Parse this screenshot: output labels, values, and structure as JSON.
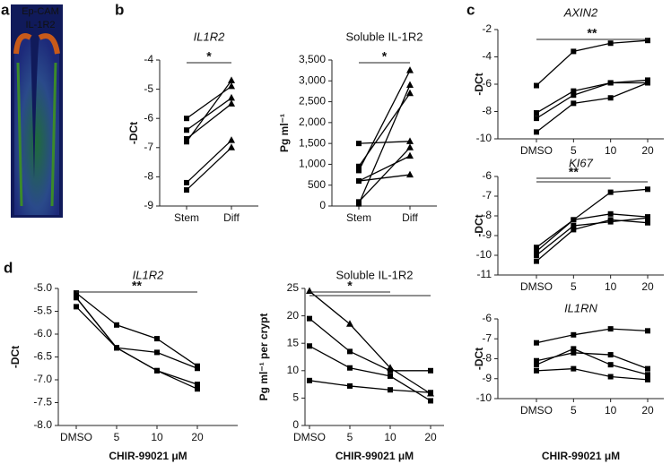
{
  "image_panel": {
    "panel": "a",
    "labels": [
      "Ep-CAM",
      "IL-1R2"
    ],
    "label_colors": [
      "#3ddc3d",
      "#ff2a2a"
    ]
  },
  "chart_data": [
    {
      "type": "line",
      "panel": "b",
      "title": "IL1R2",
      "title_italic": true,
      "ylabel": "-DCt",
      "color": "#000000",
      "categories": [
        "Stem",
        "Diff"
      ],
      "markers": [
        "square",
        "triangle"
      ],
      "ylim": [
        -9,
        -4
      ],
      "yticks": [
        -9,
        -8,
        -7,
        -6,
        -5,
        -4
      ],
      "series": [
        {
          "values": [
            -6.0,
            -4.9
          ]
        },
        {
          "values": [
            -6.4,
            -5.3
          ]
        },
        {
          "values": [
            -6.7,
            -5.5
          ]
        },
        {
          "values": [
            -6.8,
            -4.7
          ]
        },
        {
          "values": [
            -8.2,
            -6.75
          ]
        },
        {
          "values": [
            -8.45,
            -7.0
          ]
        }
      ],
      "annotations": [
        {
          "text": "*",
          "from": "Stem",
          "to": [
            "Diff"
          ]
        }
      ]
    },
    {
      "type": "line",
      "title": "Soluble IL-1R2",
      "title_italic": false,
      "ylabel": "Pg ml⁻¹",
      "color": "#000000",
      "categories": [
        "Stem",
        "Diff"
      ],
      "markers": [
        "square",
        "triangle"
      ],
      "ylim": [
        0,
        3500
      ],
      "yticks": [
        0,
        500,
        {
          "value": 1000,
          "label": "1,000"
        },
        {
          "value": 1500,
          "label": "1,500"
        },
        {
          "value": 2000,
          "label": "2,000"
        },
        {
          "value": 2500,
          "label": "2,500"
        },
        {
          "value": 3000,
          "label": "3,000"
        },
        {
          "value": 3500,
          "label": "3,500"
        }
      ],
      "series": [
        {
          "values": [
            1500,
            1550
          ]
        },
        {
          "values": [
            950,
            2700
          ]
        },
        {
          "values": [
            850,
            3250
          ]
        },
        {
          "values": [
            600,
            1200
          ]
        },
        {
          "values": [
            100,
            1400
          ]
        },
        {
          "values": [
            50,
            2900
          ]
        },
        {
          "values": [
            600,
            750
          ]
        }
      ],
      "annotations": [
        {
          "text": "*",
          "from": "Stem",
          "to": [
            "Diff"
          ]
        }
      ]
    },
    {
      "type": "line",
      "panel": "c",
      "title": "AXIN2",
      "title_italic": true,
      "ylabel": "-DCt",
      "color": "#000000",
      "categories": [
        "DMSO",
        "5",
        "10",
        "20"
      ],
      "ylim": [
        -10,
        -2
      ],
      "yticks": [
        -10,
        -8,
        -6,
        -4,
        -2
      ],
      "series": [
        {
          "marker": "square",
          "values": [
            -6.1,
            -3.6,
            -3.0,
            -2.8
          ]
        },
        {
          "marker": "square",
          "values": [
            -8.1,
            -6.5,
            -5.9,
            -5.7
          ]
        },
        {
          "marker": "square",
          "values": [
            -8.5,
            -6.8,
            -5.9,
            -5.9
          ]
        },
        {
          "marker": "square",
          "values": [
            -9.5,
            -7.4,
            -7.0,
            -5.9
          ]
        }
      ],
      "annotations": [
        {
          "text": "**",
          "from": "DMSO",
          "to": [
            "20"
          ]
        }
      ]
    },
    {
      "type": "line",
      "title": "KI67",
      "title_italic": true,
      "ylabel": "-DCt",
      "color": "#000000",
      "categories": [
        "DMSO",
        "5",
        "10",
        "20"
      ],
      "ylim": [
        -11,
        -6
      ],
      "yticks": [
        -11,
        -10,
        -9,
        -8,
        -7,
        -6
      ],
      "series": [
        {
          "marker": "square",
          "values": [
            -9.6,
            -8.2,
            -6.8,
            -6.65
          ]
        },
        {
          "marker": "square",
          "values": [
            -9.8,
            -8.2,
            -7.9,
            -8.05
          ]
        },
        {
          "marker": "square",
          "values": [
            -10.0,
            -8.5,
            -8.3,
            -8.1
          ]
        },
        {
          "marker": "square",
          "values": [
            -10.3,
            -8.7,
            -8.2,
            -8.35
          ]
        }
      ],
      "annotations": [
        {
          "text": "**",
          "from": "DMSO",
          "to": [
            "10",
            "20"
          ]
        }
      ]
    },
    {
      "type": "line",
      "title": "IL1RN",
      "title_italic": true,
      "ylabel": "-DCt",
      "xlabel": "CHIR-99021 μM",
      "color": "#000000",
      "categories": [
        "DMSO",
        "5",
        "10",
        "20"
      ],
      "ylim": [
        -10,
        -6
      ],
      "yticks": [
        -10,
        -9,
        -8,
        -7,
        -6
      ],
      "series": [
        {
          "marker": "square",
          "values": [
            -7.2,
            -6.8,
            -6.5,
            -6.6
          ]
        },
        {
          "marker": "square",
          "values": [
            -8.1,
            -7.7,
            -7.8,
            -8.5
          ]
        },
        {
          "marker": "square",
          "values": [
            -8.3,
            -7.5,
            -8.3,
            -8.8
          ]
        },
        {
          "marker": "square",
          "values": [
            -8.6,
            -8.5,
            -8.9,
            -9.05
          ]
        }
      ]
    },
    {
      "type": "line",
      "panel": "d",
      "title": "IL1R2",
      "title_italic": true,
      "ylabel": "-DCt",
      "xlabel": "CHIR-99021 μM",
      "color": "#000000",
      "categories": [
        "DMSO",
        "5",
        "10",
        "20"
      ],
      "ylim": [
        -8,
        -5
      ],
      "yticks": [
        {
          "value": -8,
          "label": "-8.0"
        },
        -7.5,
        {
          "value": -7,
          "label": "-7.0"
        },
        -6.5,
        {
          "value": -6,
          "label": "-6.0"
        },
        -5.5,
        {
          "value": -5,
          "label": "-5.0"
        }
      ],
      "series": [
        {
          "marker": "square",
          "values": [
            -5.1,
            -5.8,
            -6.1,
            -6.7
          ]
        },
        {
          "marker": "square",
          "values": [
            -5.2,
            -6.3,
            -6.4,
            -6.75
          ]
        },
        {
          "marker": "square",
          "values": [
            -5.2,
            -6.3,
            -6.8,
            -7.1
          ]
        },
        {
          "marker": "square",
          "values": [
            -5.4,
            -6.3,
            -6.8,
            -7.2
          ]
        }
      ],
      "annotations": [
        {
          "text": "**",
          "from": "DMSO",
          "to": [
            "20"
          ]
        }
      ]
    },
    {
      "type": "line",
      "title": "Soluble IL-1R2",
      "title_italic": false,
      "ylabel": "Pg ml⁻¹ per crypt",
      "xlabel": "CHIR-99021 μM",
      "color": "#000000",
      "categories": [
        "DMSO",
        "5",
        "10",
        "20"
      ],
      "ylim": [
        0,
        25
      ],
      "yticks": [
        0,
        5,
        10,
        15,
        20,
        25
      ],
      "series": [
        {
          "marker": "triangle",
          "values": [
            24.5,
            18.5,
            10.5,
            5.8
          ]
        },
        {
          "marker": "square",
          "values": [
            19.5,
            13.5,
            10,
            10
          ]
        },
        {
          "marker": "square",
          "values": [
            14.5,
            10.5,
            9,
            4.5
          ]
        },
        {
          "marker": "square",
          "values": [
            8.2,
            7.2,
            6.5,
            6
          ]
        }
      ],
      "annotations": [
        {
          "text": "*",
          "from": "DMSO",
          "to": [
            "10",
            "20"
          ]
        }
      ]
    }
  ]
}
